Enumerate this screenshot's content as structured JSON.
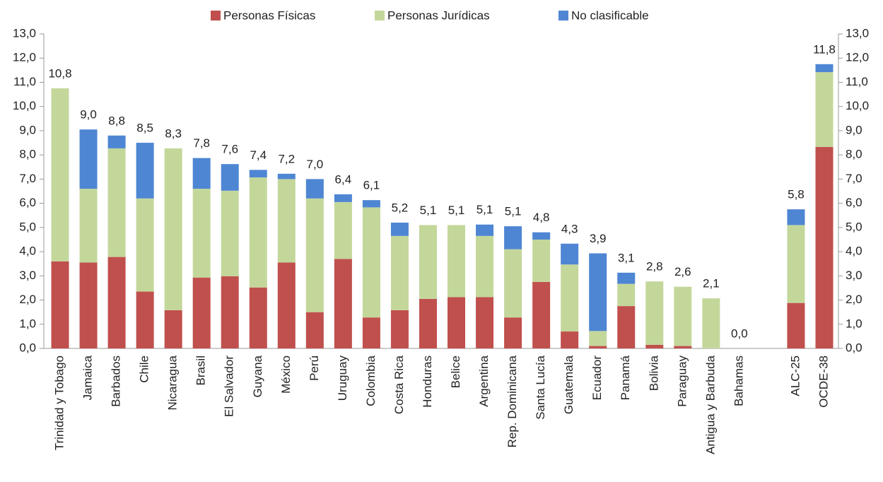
{
  "chart_data": {
    "type": "stacked_bar",
    "categories": [
      "Trinidad y Tobago",
      "Jamaica",
      "Barbados",
      "Chile",
      "Nicaragua",
      "Brasil",
      "El Salvador",
      "Guyana",
      "México",
      "Perú",
      "Uruguay",
      "Colombia",
      "Costa Rica",
      "Honduras",
      "Belice",
      "Argentina",
      "Rep. Dominicana",
      "Santa Lucía",
      "Guatemala",
      "Ecuador",
      "Panamá",
      "Bolivia",
      "Paraguay",
      "Antigua y Barbuda",
      "Bahamas",
      null,
      "ALC-25",
      "OCDE-38"
    ],
    "series": [
      {
        "name": "Personas Físicas",
        "color": "#c0504d",
        "values": [
          3.6,
          3.55,
          3.78,
          2.35,
          1.58,
          2.93,
          2.98,
          2.52,
          3.55,
          1.5,
          3.7,
          1.28,
          1.58,
          2.05,
          2.12,
          2.12,
          1.28,
          2.75,
          0.7,
          0.1,
          1.75,
          0.15,
          0.1,
          0,
          0,
          null,
          1.88,
          8.33
        ]
      },
      {
        "name": "Personas Jurídicas",
        "color": "#c4d79b",
        "values": [
          7.15,
          3.05,
          4.49,
          3.85,
          6.69,
          3.67,
          3.54,
          4.55,
          3.45,
          4.7,
          2.35,
          4.55,
          3.07,
          3.05,
          2.98,
          2.53,
          2.82,
          1.75,
          2.77,
          0.62,
          0.92,
          2.62,
          2.45,
          2.07,
          0,
          null,
          3.22,
          3.09
        ]
      },
      {
        "name": "No clasificable",
        "color": "#4e86d3",
        "values": [
          0,
          2.45,
          0.53,
          2.3,
          0,
          1.27,
          1.1,
          0.31,
          0.22,
          0.8,
          0.32,
          0.3,
          0.55,
          0,
          0,
          0.47,
          0.95,
          0.3,
          0.86,
          3.21,
          0.46,
          0,
          0,
          0,
          0,
          null,
          0.65,
          0.33
        ]
      }
    ],
    "total_labels": [
      "10,8",
      "9,0",
      "8,8",
      "8,5",
      "8,3",
      "7,8",
      "7,6",
      "7,4",
      "7,2",
      "7,0",
      "6,4",
      "6,1",
      "5,2",
      "5,1",
      "5,1",
      "5,1",
      "5,1",
      "4,8",
      "4,3",
      "3,9",
      "3,1",
      "2,8",
      "2,6",
      "2,1",
      "0,0",
      null,
      "5,8",
      "11,8"
    ],
    "ylim": [
      0,
      13
    ],
    "yticks": [
      {
        "value": 0,
        "label": "0,0"
      },
      {
        "value": 1,
        "label": "1,0"
      },
      {
        "value": 2,
        "label": "2,0"
      },
      {
        "value": 3,
        "label": "3,0"
      },
      {
        "value": 4,
        "label": "4,0"
      },
      {
        "value": 5,
        "label": "5,0"
      },
      {
        "value": 6,
        "label": "6,0"
      },
      {
        "value": 7,
        "label": "7,0"
      },
      {
        "value": 8,
        "label": "8,0"
      },
      {
        "value": 9,
        "label": "9,0"
      },
      {
        "value": 10,
        "label": "10,0"
      },
      {
        "value": 11,
        "label": "11,0"
      },
      {
        "value": 12,
        "label": "12,0"
      },
      {
        "value": 13,
        "label": "13,0"
      }
    ],
    "legend": "top"
  }
}
